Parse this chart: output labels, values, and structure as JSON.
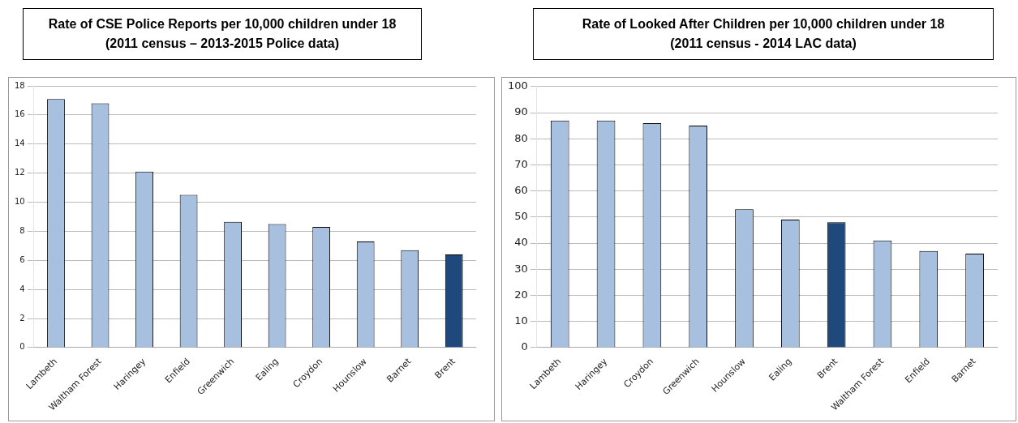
{
  "chart_data": [
    {
      "type": "bar",
      "title": "Rate of CSE Police Reports per 10,000 children under 18\n(2011 census – 2013-2015  Police data)",
      "categories": [
        "Lambeth",
        "Waltham Forest",
        "Haringey",
        "Enfield",
        "Greenwich",
        "Ealing",
        "Croydon",
        "Hounslow",
        "Barnet",
        "Brent"
      ],
      "values": [
        17.1,
        16.8,
        12.1,
        10.5,
        8.65,
        8.5,
        8.3,
        7.3,
        6.7,
        6.4
      ],
      "colors": [
        "#a7c0df",
        "#a7c0df",
        "#a7c0df",
        "#a7c0df",
        "#a7c0df",
        "#a7c0df",
        "#a7c0df",
        "#a7c0df",
        "#a7c0df",
        "#1f497d"
      ],
      "ylim": [
        0,
        18
      ],
      "yticks": [
        0,
        2,
        4,
        6,
        8,
        10,
        12,
        14,
        16,
        18
      ],
      "grid": "y"
    },
    {
      "type": "bar",
      "title": "Rate of Looked After Children per 10,000 children under 18\n(2011 census - 2014 LAC data)",
      "categories": [
        "Lambeth",
        "Haringey",
        "Croydon",
        "Greenwich",
        "Hounslow",
        "Ealing",
        "Brent",
        "Waltham Forest",
        "Enfield",
        "Barnet"
      ],
      "values": [
        87,
        87,
        86,
        85,
        53,
        49,
        48,
        41,
        37,
        36
      ],
      "colors": [
        "#a7c0df",
        "#a7c0df",
        "#a7c0df",
        "#a7c0df",
        "#a7c0df",
        "#a7c0df",
        "#1f497d",
        "#a7c0df",
        "#a7c0df",
        "#a7c0df"
      ],
      "ylim": [
        0,
        100
      ],
      "yticks": [
        0,
        10,
        20,
        30,
        40,
        50,
        60,
        70,
        80,
        90,
        100
      ],
      "grid": "y"
    }
  ]
}
